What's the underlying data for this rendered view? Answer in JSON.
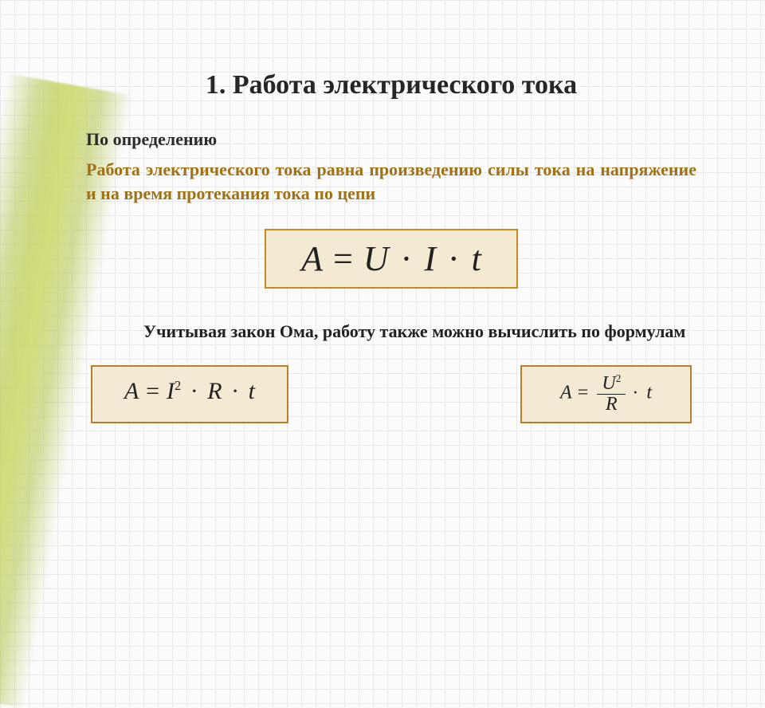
{
  "title": "1. Работа электрического тока",
  "subhead": "По определению",
  "definition": "Работа электрического тока равна произведению силы тока на напряжение и на время протекания тока по цепи",
  "main_formula_html": "A = U <span class='dot'>·</span> I <span class='dot'>·</span> t",
  "note": "Учитывая закон Ома, работу также можно вычислить по формулам",
  "formula_left_html": "A = I<span class='sup'>2</span> <span class='dot'>·</span> R <span class='dot'>·</span> t",
  "formula_right_html": "A = <span class='frac'><span class='num'>U<span class='sup'>2</span></span><span class='den'>R</span></span><span class='dot'>·</span> t",
  "colors": {
    "box_bg": "#f4ead4",
    "box_border": "#c58b1f",
    "accent_text": "#a07216",
    "accent_strip": "#b8c450",
    "grid": "#e8e8ea",
    "text": "#222222"
  },
  "typography": {
    "title_fontsize": 34,
    "body_fontsize": 22,
    "main_formula_fontsize": 44,
    "small_formula_fontsize": 30
  }
}
